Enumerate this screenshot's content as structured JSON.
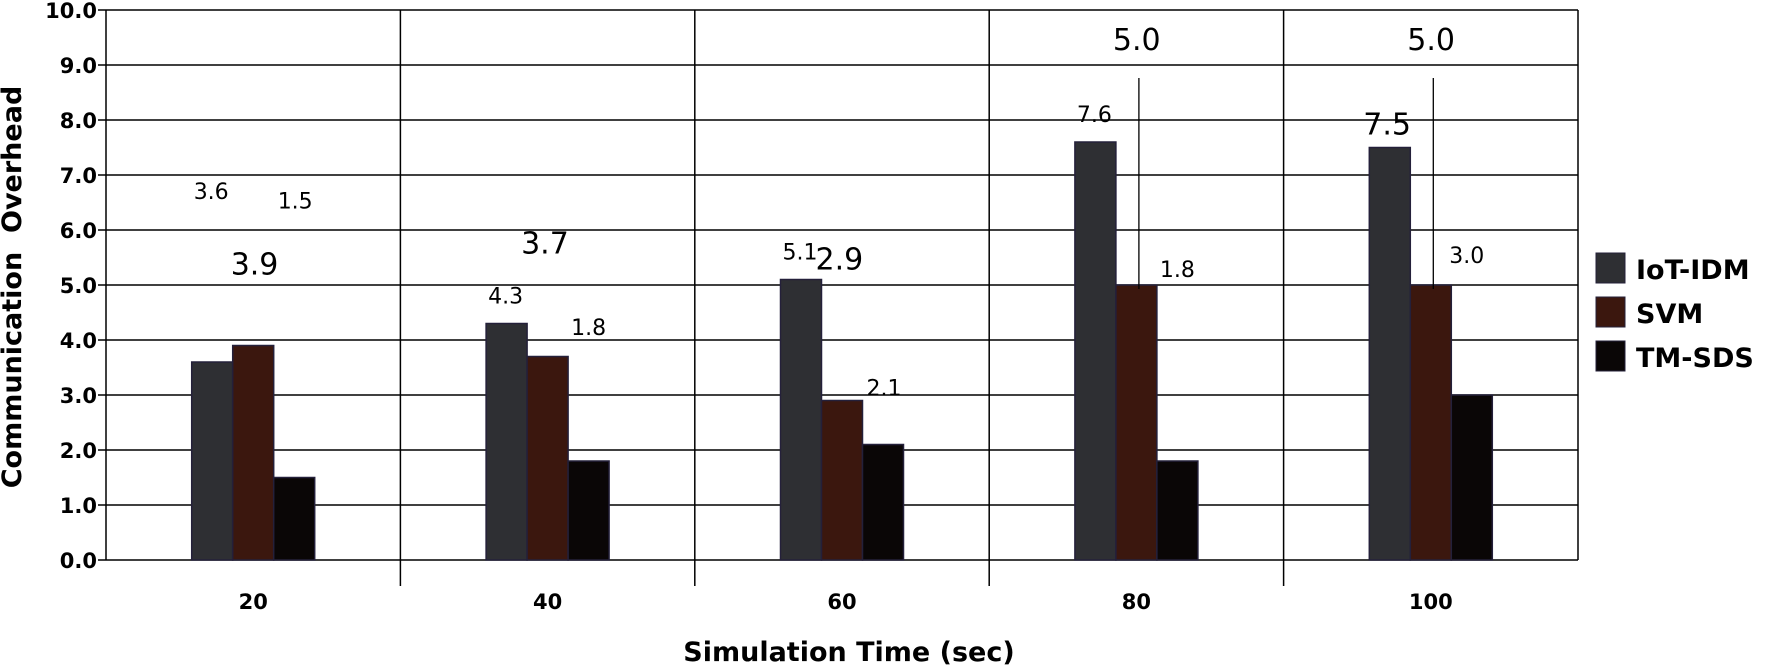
{
  "chart_data": {
    "type": "bar",
    "title": "",
    "xlabel": "Simulation Time (sec)",
    "ylabel": "Communication  Overhead",
    "categories": [
      "20",
      "40",
      "60",
      "80",
      "100"
    ],
    "ylim": [
      0,
      10
    ],
    "yticks": [
      "0.0",
      "1.0",
      "2.0",
      "3.0",
      "4.0",
      "5.0",
      "6.0",
      "7.0",
      "8.0",
      "9.0",
      "10.0"
    ],
    "grid": true,
    "legend_position": "right",
    "series": [
      {
        "name": "IoT-IDM",
        "color": "#2e2f33",
        "values": [
          3.6,
          4.3,
          5.1,
          7.6,
          7.5
        ]
      },
      {
        "name": "SVM",
        "color": "#3b170e",
        "values": [
          3.9,
          3.7,
          2.9,
          5.0,
          5.0
        ]
      },
      {
        "name": "TM-SDS",
        "color": "#0a0606",
        "values": [
          1.5,
          1.8,
          2.1,
          1.8,
          3.0
        ]
      }
    ],
    "data_labels": [
      [
        "3.6",
        "4.3",
        "5.1",
        "7.6",
        "7.5"
      ],
      [
        "3.9",
        "3.7",
        "2.9",
        "5.0",
        "5.0"
      ],
      [
        "1.5",
        "1.8",
        "2.1",
        "1.8",
        "3.0"
      ]
    ]
  }
}
